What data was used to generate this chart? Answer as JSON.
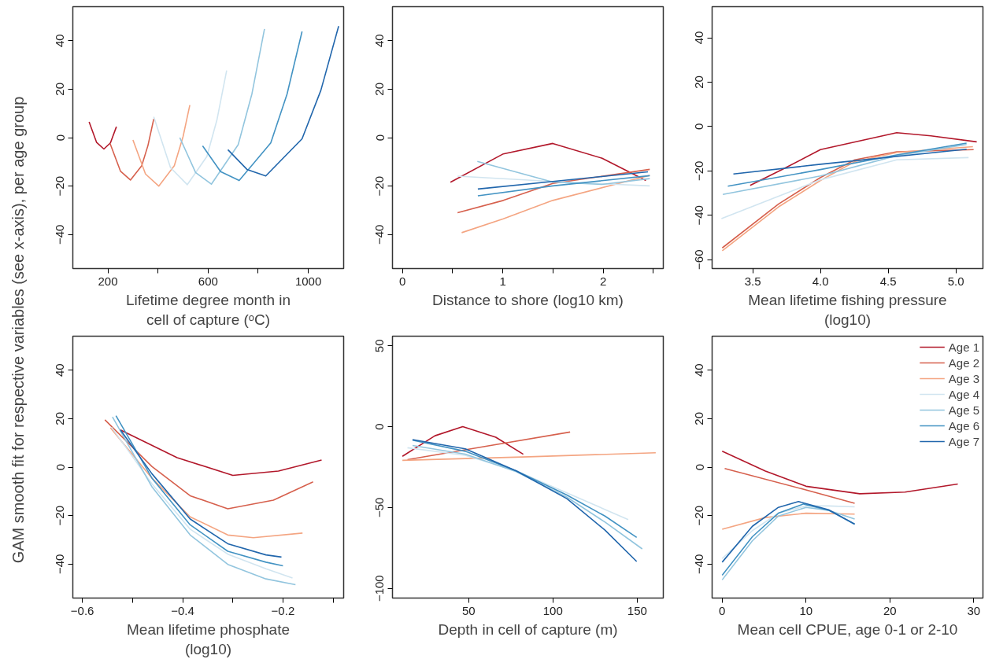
{
  "chart_data": [
    {
      "type": "line",
      "ylabel": "GAM smooth fit for respective variables (see x-axis), per age group",
      "xlabel": "Lifetime degree month in\ncell of capture (ᵒC)",
      "xlim": [
        60,
        1141
      ],
      "ylim": [
        -54,
        54
      ],
      "xticks": [
        200,
        {
          "value": 400,
          "label": null
        },
        600,
        {
          "value": 800,
          "label": null
        },
        1000
      ],
      "yticks": [
        -40,
        -20,
        0,
        20,
        40
      ],
      "grid": false,
      "series": [
        {
          "color": "#b2182b",
          "x": [
            125,
            155,
            184,
            210,
            234
          ],
          "values": [
            6.5,
            -2.0,
            -4.7,
            -2.2,
            4.5
          ]
        },
        {
          "color": "#d6604d",
          "x": [
            209,
            250,
            290,
            335,
            360,
            383
          ],
          "values": [
            -2.5,
            -13.8,
            -17.5,
            -11.6,
            -3.2,
            7.7
          ]
        },
        {
          "color": "#f4a582",
          "x": [
            300,
            350,
            403,
            465,
            500,
            527
          ],
          "values": [
            -1,
            -15.0,
            -20,
            -11.6,
            0.4,
            13.4
          ]
        },
        {
          "color": "#d1e5f0",
          "x": [
            383,
            450,
            517,
            595,
            635,
            674
          ],
          "values": [
            8.6,
            -12.4,
            -19.4,
            -7.8,
            7.2,
            27.7
          ]
        },
        {
          "color": "#92c5de",
          "x": [
            487,
            550,
            613,
            720,
            775,
            825
          ],
          "values": [
            0,
            -14.4,
            -19.2,
            -2.9,
            18.1,
            44.8
          ]
        },
        {
          "color": "#4393c3",
          "x": [
            578,
            650,
            724,
            850,
            915,
            975
          ],
          "values": [
            -3.4,
            -14.0,
            -17.7,
            -2.2,
            17.9,
            43.8
          ]
        },
        {
          "color": "#2166ac",
          "x": [
            679,
            755,
            830,
            975,
            1050,
            1121
          ],
          "values": [
            -5,
            -13.1,
            -15.8,
            -0.5,
            19.5,
            46
          ]
        }
      ]
    },
    {
      "type": "line",
      "xlabel": "Distance to shore (log10 km)",
      "xlim": [
        -0.1,
        2.6
      ],
      "ylim": [
        -54,
        54
      ],
      "xticks": [
        0,
        {
          "value": 0.5,
          "label": null
        },
        1,
        {
          "value": 1.5,
          "label": null
        },
        2,
        {
          "value": 2.5,
          "label": null
        }
      ],
      "yticks": [
        -40,
        -20,
        0,
        20,
        40
      ],
      "grid": false,
      "series": [
        {
          "color": "#b2182b",
          "x": [
            0.478,
            1.005,
            1.498,
            1.99,
            2.427
          ],
          "values": [
            -18.4,
            -6.7,
            -2.4,
            -8.5,
            -17.7
          ]
        },
        {
          "color": "#d6604d",
          "x": [
            0.549,
            1.005,
            1.498,
            2.465
          ],
          "values": [
            -31,
            -25.9,
            -18.9,
            -13.1
          ]
        },
        {
          "color": "#f4a582",
          "x": [
            0.59,
            1.005,
            1.498,
            2.465
          ],
          "values": [
            -39.2,
            -33.5,
            -25.9,
            -15.6
          ]
        },
        {
          "color": "#d1e5f0",
          "x": [
            0.549,
            1.498,
            2.465
          ],
          "values": [
            -15.9,
            -18.1,
            -19.9
          ]
        },
        {
          "color": "#92c5de",
          "x": [
            0.746,
            1.498,
            1.99,
            2.465
          ],
          "values": [
            -9.8,
            -18.3,
            -19.3,
            -16.9
          ]
        },
        {
          "color": "#4393c3",
          "x": [
            0.751,
            1.498,
            2.465
          ],
          "values": [
            -24,
            -19.9,
            -15.7
          ]
        },
        {
          "color": "#2166ac",
          "x": [
            0.751,
            1.498,
            2.447
          ],
          "values": [
            -21.2,
            -18.1,
            -14.1
          ]
        }
      ]
    },
    {
      "type": "line",
      "xlabel": "Mean lifetime fishing pressure\n(log10)",
      "xlim": [
        3.2,
        5.2
      ],
      "ylim": [
        -64,
        54
      ],
      "xticks": [
        3.5,
        {
          "value": 4,
          "label": "4.0"
        },
        4.5,
        {
          "value": 5,
          "label": "5.0"
        }
      ],
      "yticks": [
        -60,
        -40,
        -20,
        0,
        20,
        40
      ],
      "grid": false,
      "series": [
        {
          "color": "#b2182b",
          "x": [
            3.481,
            3.729,
            4.0,
            4.563,
            4.816,
            5.154
          ],
          "values": [
            -26.5,
            -19.0,
            -10.4,
            -2.8,
            -4.2,
            -6.9
          ]
        },
        {
          "color": "#d6604d",
          "x": [
            3.275,
            3.691,
            4.0,
            4.254,
            4.563,
            5.131
          ],
          "values": [
            -54.7,
            -34.9,
            -23,
            -15,
            -11.4,
            -10.4
          ]
        },
        {
          "color": "#f4a582",
          "x": [
            3.275,
            3.691,
            4.0,
            4.254,
            4.563,
            5.126
          ],
          "values": [
            -56,
            -36.2,
            -24.3,
            -15.8,
            -11.7,
            -9.1
          ]
        },
        {
          "color": "#d1e5f0",
          "x": [
            3.269,
            4.0,
            4.563,
            5.094
          ],
          "values": [
            -41.5,
            -24,
            -15,
            -14
          ]
        },
        {
          "color": "#92c5de",
          "x": [
            3.279,
            4.0,
            4.563,
            5.079
          ],
          "values": [
            -30.6,
            -22.3,
            -13.1,
            -8.1
          ]
        },
        {
          "color": "#4393c3",
          "x": [
            3.316,
            4.0,
            4.563,
            5.079
          ],
          "values": [
            -26.9,
            -19.4,
            -12.8,
            -7.5
          ]
        },
        {
          "color": "#2166ac",
          "x": [
            3.357,
            4.0,
            5.079
          ],
          "values": [
            -21.4,
            -17,
            -10.2
          ]
        }
      ]
    },
    {
      "type": "line",
      "xlabel": "Mean lifetime phosphate\n(log10)",
      "xlim": [
        -0.619,
        -0.079
      ],
      "ylim": [
        -54,
        54
      ],
      "xticks": [
        -0.6,
        {
          "value": -0.5,
          "label": null
        },
        -0.4,
        {
          "value": -0.3,
          "label": null
        },
        -0.2,
        {
          "value": -0.1,
          "label": null
        }
      ],
      "yticks": [
        -40,
        -20,
        0,
        20,
        40
      ],
      "grid": false,
      "series": [
        {
          "color": "#b2182b",
          "x": [
            -0.524,
            -0.411,
            -0.3,
            -0.209,
            -0.123
          ],
          "values": [
            15.3,
            3.9,
            -3.4,
            -1.6,
            2.9
          ]
        },
        {
          "color": "#d6604d",
          "x": [
            -0.555,
            -0.461,
            -0.385,
            -0.31,
            -0.219,
            -0.14
          ],
          "values": [
            19.5,
            0.2,
            -11.8,
            -17.2,
            -13.6,
            -6.1
          ]
        },
        {
          "color": "#f4a582",
          "x": [
            -0.544,
            -0.461,
            -0.385,
            -0.31,
            -0.259,
            -0.161
          ],
          "values": [
            16.2,
            -4.6,
            -20.5,
            -28.0,
            -29.1,
            -27.2
          ]
        },
        {
          "color": "#d1e5f0",
          "x": [
            -0.542,
            -0.461,
            -0.385,
            -0.31,
            -0.234,
            -0.181
          ],
          "values": [
            16.5,
            -7.0,
            -25.6,
            -35.9,
            -41.9,
            -45.7
          ]
        },
        {
          "color": "#92c5de",
          "x": [
            -0.54,
            -0.461,
            -0.385,
            -0.31,
            -0.234,
            -0.175
          ],
          "values": [
            20.7,
            -8.2,
            -28.0,
            -40.1,
            -46.1,
            -48.5
          ]
        },
        {
          "color": "#4393c3",
          "x": [
            -0.533,
            -0.461,
            -0.385,
            -0.31,
            -0.234,
            -0.2
          ],
          "values": [
            21.2,
            -4.6,
            -23.8,
            -34.7,
            -39.2,
            -40.7
          ]
        },
        {
          "color": "#2166ac",
          "x": [
            -0.524,
            -0.461,
            -0.385,
            -0.31,
            -0.234,
            -0.203
          ],
          "values": [
            15.3,
            -2.8,
            -21.4,
            -31.6,
            -36.2,
            -37.1
          ]
        }
      ]
    },
    {
      "type": "line",
      "xlabel": "Depth in cell of capture (m)",
      "xlim": [
        4.8,
        165.5
      ],
      "ylim": [
        -106,
        56
      ],
      "xticks": [
        50,
        100,
        150
      ],
      "yticks": [
        -100,
        -50,
        0,
        50
      ],
      "grid": false,
      "series": [
        {
          "color": "#b2182b",
          "x": [
            10.7,
            30,
            46.5,
            66.1,
            82.4
          ],
          "values": [
            -18.3,
            -5.6,
            0,
            -6.5,
            -17.0
          ]
        },
        {
          "color": "#d6604d",
          "x": [
            13.7,
            61.6,
            110.2
          ],
          "values": [
            -20.4,
            -11.9,
            -3.3
          ]
        },
        {
          "color": "#f4a582",
          "x": [
            10.7,
            85.7,
            161
          ],
          "values": [
            -20.8,
            -18.6,
            -16.1
          ]
        },
        {
          "color": "#d1e5f0",
          "x": [
            13.7,
            48,
            78.2,
            108.3,
            144.7
          ],
          "values": [
            -13.0,
            -17.7,
            -27.3,
            -40.9,
            -57.5
          ]
        },
        {
          "color": "#92c5de",
          "x": [
            16.7,
            48,
            78.2,
            108.3,
            130.9,
            153
          ],
          "values": [
            -11.6,
            -17.0,
            -27.8,
            -43.6,
            -59,
            -75.6
          ]
        },
        {
          "color": "#4393c3",
          "x": [
            16.7,
            48,
            78.2,
            108.3,
            130.9,
            149.7
          ],
          "values": [
            -8.3,
            -15.2,
            -27.3,
            -42.3,
            -55.3,
            -68.5
          ]
        },
        {
          "color": "#2166ac",
          "x": [
            16.7,
            48,
            78.2,
            108.3,
            130.9,
            149.7
          ],
          "values": [
            -8.0,
            -13.7,
            -27.3,
            -44.5,
            -64,
            -83.4
          ]
        }
      ]
    },
    {
      "type": "line",
      "xlabel": "Mean cell CPUE, age 0-1 or 2-10",
      "xlim": [
        -1.2,
        31.1
      ],
      "ylim": [
        -54,
        54
      ],
      "xticks": [
        0,
        10,
        20,
        30
      ],
      "yticks": [
        -40,
        -20,
        0,
        20,
        40
      ],
      "grid": false,
      "legend": "top right",
      "series": [
        {
          "name": "Age 1",
          "color": "#b2182b",
          "x": [
            0,
            5.15,
            10,
            16.4,
            21.8,
            28.1
          ],
          "values": [
            6.6,
            -1.6,
            -7.9,
            -11,
            -10.3,
            -7.0
          ]
        },
        {
          "name": "Age 2",
          "color": "#d6604d",
          "x": [
            0.3,
            10,
            15.8
          ],
          "values": [
            -0.6,
            -9.4,
            -14.9
          ]
        },
        {
          "name": "Age 3",
          "color": "#f4a582",
          "x": [
            0,
            5.15,
            10,
            15.8
          ],
          "values": [
            -25.6,
            -20.8,
            -19.0,
            -19.4
          ]
        },
        {
          "name": "Age 4",
          "color": "#d1e5f0",
          "x": [
            0,
            3.6,
            6.7,
            10,
            12.7,
            15.8
          ],
          "values": [
            -37.7,
            -26.2,
            -19.0,
            -16.0,
            -16.0,
            -16.4
          ]
        },
        {
          "name": "Age 5",
          "color": "#92c5de",
          "x": [
            0,
            3.6,
            6.7,
            10,
            12.7,
            15.8
          ],
          "values": [
            -46.5,
            -30.4,
            -20.2,
            -16.6,
            -17.8,
            -21.4
          ]
        },
        {
          "name": "Age 6",
          "color": "#4393c3",
          "x": [
            0,
            3.6,
            6.7,
            9.7,
            12.7,
            15.8
          ],
          "values": [
            -44.6,
            -28.7,
            -19.0,
            -15.2,
            -17.8,
            -23.5
          ]
        },
        {
          "name": "Age 7",
          "color": "#2166ac",
          "x": [
            0,
            3.6,
            6.7,
            9.1,
            12.7,
            15.8
          ],
          "values": [
            -39.2,
            -24.4,
            -16.6,
            -14.2,
            -17.6,
            -23.5
          ]
        }
      ]
    }
  ]
}
